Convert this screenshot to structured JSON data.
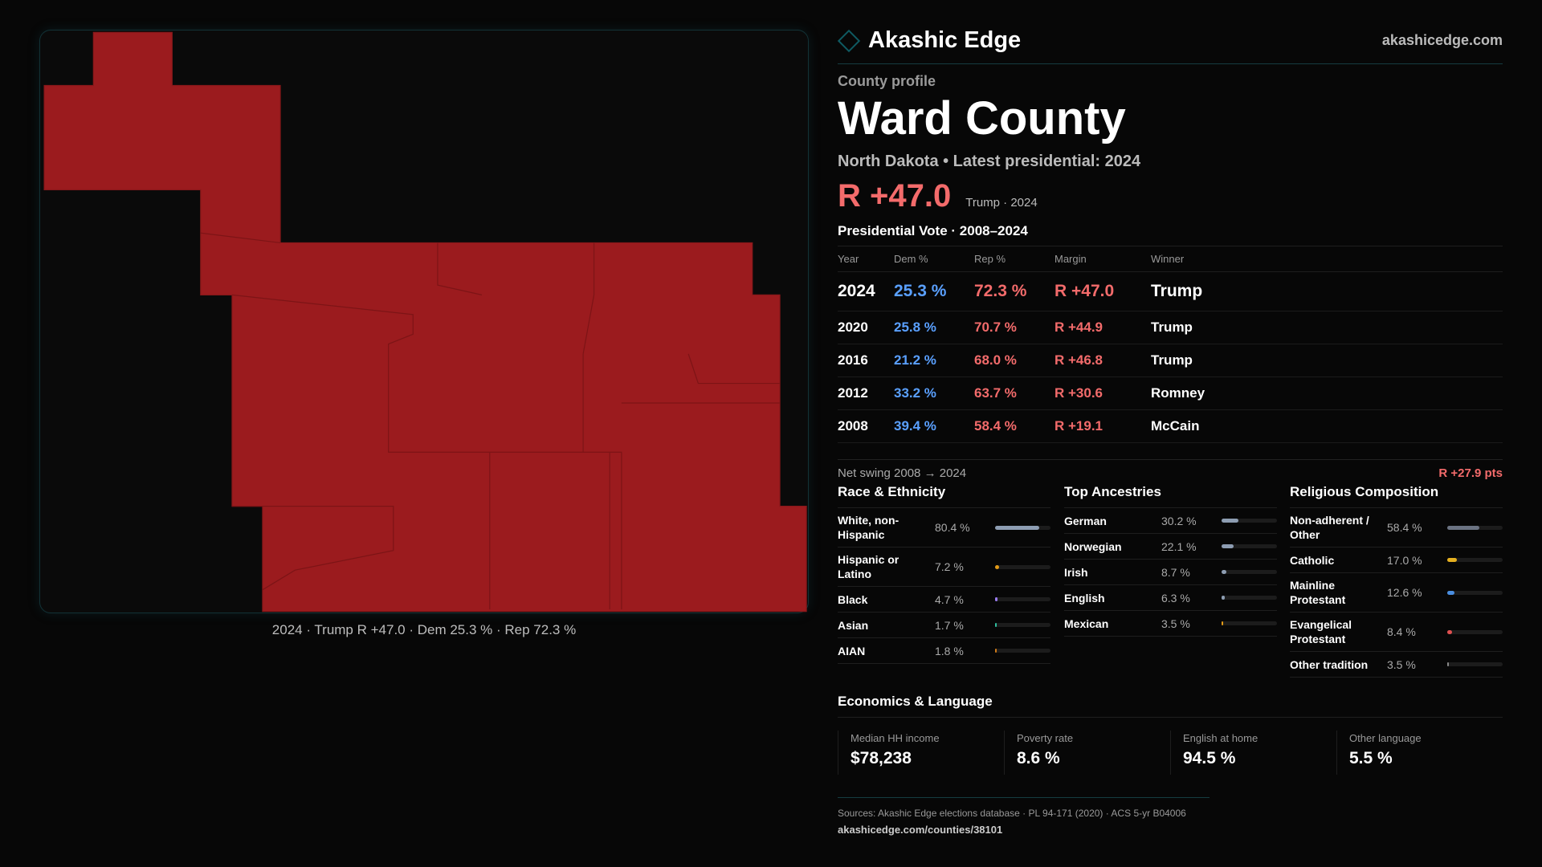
{
  "brand": {
    "name": "Akashic Edge",
    "site": "akashicedge.com",
    "logo_icon": "diamond-outline-icon"
  },
  "profile": {
    "label": "County profile",
    "title": "Ward County",
    "subtitle": "North Dakota • Latest presidential: 2024",
    "margin": "R +47.0",
    "margin_note": "Trump · 2024"
  },
  "map": {
    "caption": "2024 · Trump R +47.0 · Dem 25.3 % · Rep 72.3 %",
    "fill_color": "#9b1b1e"
  },
  "votes": {
    "title": "Presidential Vote · 2008–2024",
    "headers": [
      "Year",
      "Dem %",
      "Rep %",
      "Margin",
      "Winner"
    ],
    "rows": [
      [
        "2024",
        "25.3 %",
        "72.3 %",
        "R +47.0",
        "Trump"
      ],
      [
        "2020",
        "25.8 %",
        "70.7 %",
        "R +44.9",
        "Trump"
      ],
      [
        "2016",
        "21.2 %",
        "68.0 %",
        "R +46.8",
        "Trump"
      ],
      [
        "2012",
        "33.2 %",
        "63.7 %",
        "R +30.6",
        "Romney"
      ],
      [
        "2008",
        "39.4 %",
        "58.4 %",
        "R +19.1",
        "McCain"
      ]
    ]
  },
  "swing": {
    "label": "Net swing 2008 → 2024",
    "value": "R +27.9 pts"
  },
  "race": {
    "title": "Race & Ethnicity",
    "items": [
      {
        "name": "White, non-Hispanic",
        "pct": "80.4 %",
        "value": 80.4,
        "color": "#8d9db2"
      },
      {
        "name": "Hispanic or Latino",
        "pct": "7.2 %",
        "value": 7.2,
        "color": "#e29a17"
      },
      {
        "name": "Black",
        "pct": "4.7 %",
        "value": 4.7,
        "color": "#9a7cf0"
      },
      {
        "name": "Asian",
        "pct": "1.7 %",
        "value": 1.7,
        "color": "#2fc0a0"
      },
      {
        "name": "AIAN",
        "pct": "1.8 %",
        "value": 1.8,
        "color": "#d07a18"
      }
    ]
  },
  "ancestry": {
    "title": "Top Ancestries",
    "items": [
      {
        "name": "German",
        "pct": "30.2 %",
        "value": 30.2,
        "color": "#8d9db2"
      },
      {
        "name": "Norwegian",
        "pct": "22.1 %",
        "value": 22.1,
        "color": "#8d9db2"
      },
      {
        "name": "Irish",
        "pct": "8.7 %",
        "value": 8.7,
        "color": "#8d9db2"
      },
      {
        "name": "English",
        "pct": "6.3 %",
        "value": 6.3,
        "color": "#8d9db2"
      },
      {
        "name": "Mexican",
        "pct": "3.5 %",
        "value": 3.5,
        "color": "#e29a17"
      }
    ]
  },
  "religion": {
    "title": "Religious Composition",
    "items": [
      {
        "name": "Non-adherent / Other",
        "pct": "58.4 %",
        "value": 58.4,
        "color": "#6b7382"
      },
      {
        "name": "Catholic",
        "pct": "17.0 %",
        "value": 17.0,
        "color": "#e5b020"
      },
      {
        "name": "Mainline Protestant",
        "pct": "12.6 %",
        "value": 12.6,
        "color": "#4a8ee0"
      },
      {
        "name": "Evangelical Protestant",
        "pct": "8.4 %",
        "value": 8.4,
        "color": "#e05050"
      },
      {
        "name": "Other tradition",
        "pct": "3.5 %",
        "value": 3.5,
        "color": "#888888"
      }
    ]
  },
  "economics": {
    "title": "Economics & Language",
    "stats": [
      {
        "label": "Median HH income",
        "value": "$78,238"
      },
      {
        "label": "Poverty rate",
        "value": "8.6 %"
      },
      {
        "label": "English at home",
        "value": "94.5 %"
      },
      {
        "label": "Other language",
        "value": "5.5 %"
      }
    ]
  },
  "footer": {
    "sources": "Sources: Akashic Edge elections database · PL 94-171 (2020) · ACS 5-yr B04006",
    "url": "akashicedge.com/counties/38101"
  }
}
